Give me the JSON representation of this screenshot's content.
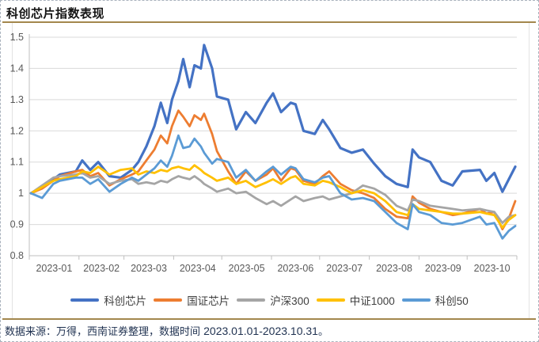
{
  "header": {
    "title": "科创芯片指数表现"
  },
  "footer": {
    "note_prefix": "数据来源：万得，西南证券整理，数据时间 ",
    "note_date": "2023.01.01-2023.10.31",
    "note_suffix": "。"
  },
  "style": {
    "accent_gold": "#A3874D",
    "grid_color": "#D9D9D9",
    "axis_line_color": "#BFBFBF",
    "axis_text_color": "#595959",
    "legend_text_color": "#404040",
    "note_color": "#1F3150",
    "border_dash_color": "#A9B2BD"
  },
  "chart_data": {
    "type": "line",
    "title": "科创芯片指数表现",
    "xlabel": "",
    "ylabel": "",
    "ylim": [
      0.8,
      1.5
    ],
    "y_ticks": [
      "1.5",
      "1.4",
      "1.3",
      "1.2",
      "1.1",
      "1",
      "0.9",
      "0.8"
    ],
    "x_tick_labels": [
      "2023-01",
      "2023-02",
      "2023-03",
      "2023-04",
      "2023-05",
      "2023-06",
      "2023-07",
      "2023-08",
      "2023-09",
      "2023-10"
    ],
    "grid": true,
    "legend_position": "bottom",
    "x_unit": "date in 2023 (MM-DD), indexed to 1.0 on 2023-01-01",
    "x": [
      "01-02",
      "01-09",
      "01-16",
      "01-20",
      "01-30",
      "02-03",
      "02-08",
      "02-13",
      "02-20",
      "02-27",
      "03-06",
      "03-10",
      "03-15",
      "03-20",
      "03-24",
      "03-28",
      "03-31",
      "04-04",
      "04-07",
      "04-11",
      "04-14",
      "04-18",
      "04-20",
      "04-25",
      "04-28",
      "05-05",
      "05-10",
      "05-16",
      "05-22",
      "05-29",
      "06-02",
      "06-07",
      "06-13",
      "06-16",
      "06-21",
      "06-28",
      "07-03",
      "07-07",
      "07-14",
      "07-21",
      "07-28",
      "08-04",
      "08-11",
      "08-18",
      "08-25",
      "08-28",
      "09-01",
      "09-08",
      "09-15",
      "09-22",
      "09-28",
      "10-09",
      "10-13",
      "10-18",
      "10-23",
      "10-27",
      "10-31"
    ],
    "series": [
      {
        "name": "科创芯片",
        "color": "#4472C4",
        "width": 3.2,
        "values": [
          1.0,
          1.02,
          1.045,
          1.06,
          1.07,
          1.105,
          1.075,
          1.1,
          1.055,
          1.05,
          1.075,
          1.1,
          1.15,
          1.215,
          1.29,
          1.225,
          1.3,
          1.36,
          1.43,
          1.34,
          1.41,
          1.4,
          1.475,
          1.4,
          1.31,
          1.3,
          1.205,
          1.26,
          1.225,
          1.29,
          1.32,
          1.26,
          1.29,
          1.285,
          1.2,
          1.19,
          1.235,
          1.205,
          1.145,
          1.13,
          1.14,
          1.095,
          1.055,
          1.03,
          1.02,
          1.14,
          1.115,
          1.1,
          1.04,
          1.025,
          1.07,
          1.075,
          1.04,
          1.065,
          1.005,
          1.045,
          1.085
        ]
      },
      {
        "name": "国证芯片",
        "color": "#ED7D31",
        "width": 2.8,
        "values": [
          1.0,
          1.015,
          1.04,
          1.055,
          1.07,
          1.075,
          1.055,
          1.065,
          1.025,
          1.045,
          1.06,
          1.07,
          1.105,
          1.14,
          1.185,
          1.16,
          1.215,
          1.265,
          1.245,
          1.215,
          1.25,
          1.235,
          1.255,
          1.19,
          1.135,
          1.07,
          1.03,
          1.07,
          1.04,
          1.06,
          1.08,
          1.04,
          1.08,
          1.075,
          1.04,
          1.03,
          1.055,
          1.07,
          1.03,
          1.01,
          1.0,
          0.985,
          0.95,
          0.925,
          0.92,
          0.99,
          0.97,
          0.95,
          0.94,
          0.93,
          0.935,
          0.95,
          0.935,
          0.94,
          0.885,
          0.92,
          0.975
        ]
      },
      {
        "name": "沪深300",
        "color": "#A5A5A5",
        "width": 2.8,
        "values": [
          1.0,
          1.025,
          1.05,
          1.055,
          1.06,
          1.065,
          1.05,
          1.055,
          1.03,
          1.04,
          1.045,
          1.03,
          1.035,
          1.03,
          1.04,
          1.035,
          1.045,
          1.055,
          1.05,
          1.045,
          1.055,
          1.04,
          1.03,
          1.015,
          1.005,
          1.015,
          1.0,
          1.005,
          0.985,
          0.965,
          0.975,
          0.96,
          0.98,
          0.99,
          0.975,
          0.985,
          0.99,
          0.98,
          0.99,
          1.0,
          1.025,
          1.015,
          0.995,
          0.96,
          0.945,
          0.98,
          0.975,
          0.96,
          0.955,
          0.95,
          0.945,
          0.95,
          0.945,
          0.94,
          0.905,
          0.925,
          0.93
        ]
      },
      {
        "name": "中证1000",
        "color": "#FFC000",
        "width": 2.8,
        "values": [
          1.0,
          1.02,
          1.04,
          1.045,
          1.055,
          1.07,
          1.065,
          1.085,
          1.06,
          1.075,
          1.08,
          1.06,
          1.07,
          1.065,
          1.075,
          1.07,
          1.08,
          1.085,
          1.08,
          1.075,
          1.09,
          1.075,
          1.065,
          1.05,
          1.04,
          1.05,
          1.03,
          1.04,
          1.02,
          1.035,
          1.045,
          1.03,
          1.05,
          1.055,
          1.03,
          1.025,
          1.04,
          1.035,
          1.02,
          1.0,
          1.01,
          1.0,
          0.975,
          0.94,
          0.93,
          0.965,
          0.95,
          0.945,
          0.94,
          0.935,
          0.935,
          0.94,
          0.935,
          0.93,
          0.89,
          0.915,
          0.93
        ]
      },
      {
        "name": "科创50",
        "color": "#5B9BD5",
        "width": 2.8,
        "values": [
          1.0,
          0.985,
          1.03,
          1.04,
          1.05,
          1.05,
          1.03,
          1.045,
          1.005,
          1.03,
          1.05,
          1.04,
          1.06,
          1.08,
          1.105,
          1.085,
          1.12,
          1.185,
          1.145,
          1.15,
          1.175,
          1.15,
          1.13,
          1.095,
          1.11,
          1.1,
          1.05,
          1.075,
          1.04,
          1.07,
          1.085,
          1.06,
          1.085,
          1.08,
          1.045,
          1.035,
          1.05,
          1.055,
          1.0,
          0.98,
          0.985,
          0.975,
          0.94,
          0.905,
          0.885,
          0.965,
          0.94,
          0.93,
          0.905,
          0.9,
          0.905,
          0.925,
          0.9,
          0.905,
          0.855,
          0.88,
          0.895
        ]
      }
    ]
  }
}
